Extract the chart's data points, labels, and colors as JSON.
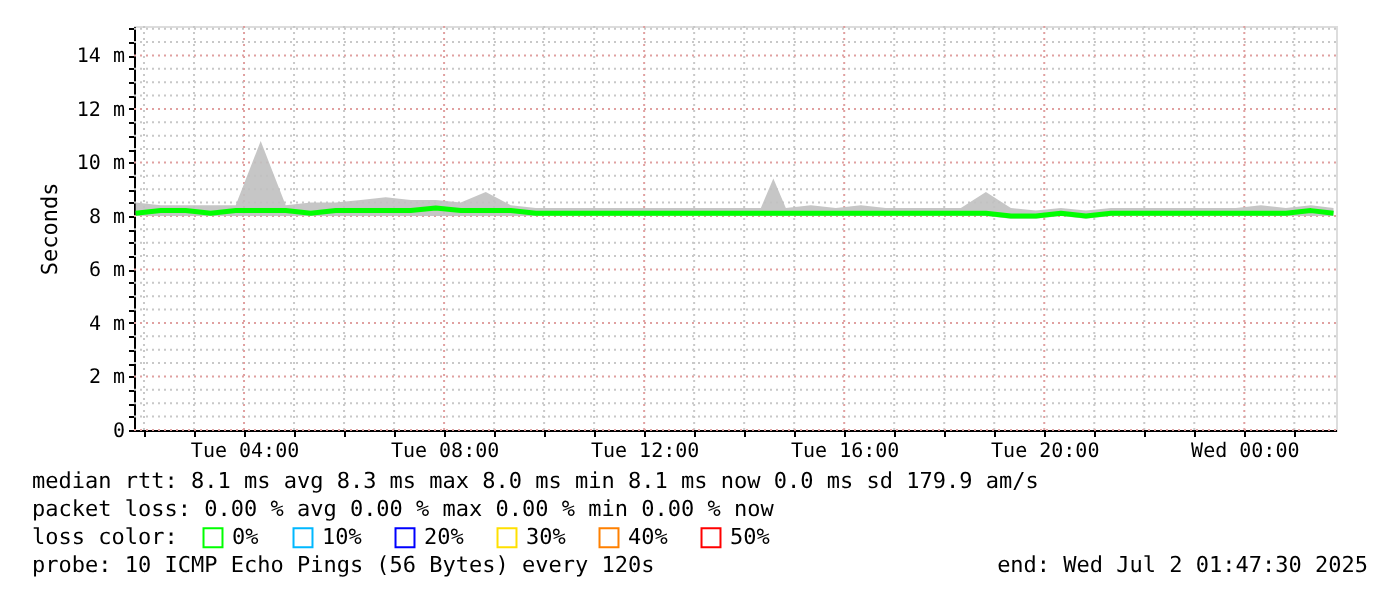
{
  "chart_data": {
    "type": "line",
    "ylabel": "Seconds",
    "x": [
      "2025-07-01T01:50",
      "2025-07-01T02:20",
      "2025-07-01T02:50",
      "2025-07-01T03:20",
      "2025-07-01T03:50",
      "2025-07-01T04:20",
      "2025-07-01T04:50",
      "2025-07-01T05:20",
      "2025-07-01T05:50",
      "2025-07-01T06:20",
      "2025-07-01T06:50",
      "2025-07-01T07:20",
      "2025-07-01T07:50",
      "2025-07-01T08:20",
      "2025-07-01T08:50",
      "2025-07-01T09:20",
      "2025-07-01T09:50",
      "2025-07-01T10:20",
      "2025-07-01T10:50",
      "2025-07-01T11:20",
      "2025-07-01T11:50",
      "2025-07-01T12:20",
      "2025-07-01T12:50",
      "2025-07-01T13:20",
      "2025-07-01T13:50",
      "2025-07-01T14:20",
      "2025-07-01T14:35",
      "2025-07-01T14:50",
      "2025-07-01T15:20",
      "2025-07-01T15:50",
      "2025-07-01T16:20",
      "2025-07-01T16:50",
      "2025-07-01T17:20",
      "2025-07-01T17:50",
      "2025-07-01T18:20",
      "2025-07-01T18:50",
      "2025-07-01T19:20",
      "2025-07-01T19:50",
      "2025-07-01T20:20",
      "2025-07-01T20:50",
      "2025-07-01T21:20",
      "2025-07-01T21:50",
      "2025-07-01T22:20",
      "2025-07-01T22:50",
      "2025-07-01T23:20",
      "2025-07-01T23:50",
      "2025-07-02T00:20",
      "2025-07-02T00:50",
      "2025-07-02T01:20",
      "2025-07-02T01:47"
    ],
    "series": [
      {
        "name": "0%",
        "color": "#00ff00",
        "values": [
          8.1,
          8.2,
          8.2,
          8.1,
          8.2,
          8.2,
          8.2,
          8.1,
          8.2,
          8.2,
          8.2,
          8.2,
          8.3,
          8.2,
          8.2,
          8.2,
          8.1,
          8.1,
          8.1,
          8.1,
          8.1,
          8.1,
          8.1,
          8.1,
          8.1,
          8.1,
          8.1,
          8.1,
          8.1,
          8.1,
          8.1,
          8.1,
          8.1,
          8.1,
          8.1,
          8.1,
          8.0,
          8.0,
          8.1,
          8.0,
          8.1,
          8.1,
          8.1,
          8.1,
          8.1,
          8.1,
          8.1,
          8.1,
          8.2,
          8.1
        ],
        "lower": [
          8.0,
          8.0,
          8.0,
          8.0,
          8.0,
          8.0,
          8.0,
          8.0,
          8.0,
          8.0,
          8.0,
          8.0,
          8.0,
          8.0,
          8.0,
          8.0,
          8.0,
          8.0,
          8.0,
          8.0,
          8.0,
          8.0,
          8.0,
          8.0,
          8.0,
          8.0,
          8.0,
          8.0,
          8.0,
          8.0,
          8.0,
          8.0,
          8.0,
          8.0,
          8.0,
          8.0,
          7.9,
          7.9,
          8.0,
          7.9,
          8.0,
          8.0,
          8.0,
          8.0,
          8.0,
          8.0,
          8.0,
          8.0,
          8.0,
          8.0
        ],
        "upper": [
          8.5,
          8.4,
          8.4,
          8.4,
          8.4,
          10.8,
          8.4,
          8.5,
          8.5,
          8.6,
          8.7,
          8.6,
          8.6,
          8.5,
          8.9,
          8.4,
          8.3,
          8.3,
          8.3,
          8.3,
          8.3,
          8.3,
          8.3,
          8.3,
          8.3,
          8.3,
          9.4,
          8.3,
          8.4,
          8.3,
          8.4,
          8.3,
          8.3,
          8.3,
          8.3,
          8.9,
          8.3,
          8.2,
          8.3,
          8.2,
          8.3,
          8.3,
          8.3,
          8.3,
          8.3,
          8.3,
          8.4,
          8.3,
          8.4,
          8.3
        ]
      },
      {
        "name": "10%",
        "color": "#00b8ff",
        "values": [
          null,
          null,
          null,
          null,
          null,
          null,
          null,
          null,
          null,
          null,
          null,
          null,
          null,
          null,
          null,
          null,
          null,
          null,
          null,
          null,
          null,
          null,
          null,
          null,
          null,
          null,
          null,
          null,
          null,
          null,
          null,
          null,
          null,
          null,
          null,
          null,
          null,
          null,
          null,
          null,
          null,
          null,
          null,
          null,
          null,
          null,
          null,
          null,
          null,
          null
        ]
      },
      {
        "name": "20%",
        "color": "#0000ff",
        "values": [
          null,
          null,
          null,
          null,
          null,
          null,
          null,
          null,
          null,
          null,
          null,
          null,
          null,
          null,
          null,
          null,
          null,
          null,
          null,
          null,
          null,
          null,
          null,
          null,
          null,
          null,
          null,
          null,
          null,
          null,
          null,
          null,
          null,
          null,
          null,
          null,
          null,
          null,
          null,
          null,
          null,
          null,
          null,
          null,
          null,
          null,
          null,
          null,
          null,
          null
        ]
      },
      {
        "name": "30%",
        "color": "#ffe000",
        "values": [
          null,
          null,
          null,
          null,
          null,
          null,
          null,
          null,
          null,
          null,
          null,
          null,
          null,
          null,
          null,
          null,
          null,
          null,
          null,
          null,
          null,
          null,
          null,
          null,
          null,
          null,
          null,
          null,
          null,
          null,
          null,
          null,
          null,
          null,
          null,
          null,
          null,
          null,
          null,
          null,
          null,
          null,
          null,
          null,
          null,
          null,
          null,
          null,
          null,
          null
        ]
      },
      {
        "name": "40%",
        "color": "#ff8000",
        "values": [
          null,
          null,
          null,
          null,
          null,
          null,
          null,
          null,
          null,
          null,
          null,
          null,
          null,
          null,
          null,
          null,
          null,
          null,
          null,
          null,
          null,
          null,
          null,
          null,
          null,
          null,
          null,
          null,
          null,
          null,
          null,
          null,
          null,
          null,
          null,
          null,
          null,
          null,
          null,
          null,
          null,
          null,
          null,
          null,
          null,
          null,
          null,
          null,
          null,
          null
        ]
      },
      {
        "name": "50%",
        "color": "#ff0000",
        "values": [
          null,
          null,
          null,
          null,
          null,
          null,
          null,
          null,
          null,
          null,
          null,
          null,
          null,
          null,
          null,
          null,
          null,
          null,
          null,
          null,
          null,
          null,
          null,
          null,
          null,
          null,
          null,
          null,
          null,
          null,
          null,
          null,
          null,
          null,
          null,
          null,
          null,
          null,
          null,
          null,
          null,
          null,
          null,
          null,
          null,
          null,
          null,
          null,
          null,
          null
        ]
      }
    ],
    "legend_title": "loss color:",
    "legend": "bottom",
    "xlim": [
      "2025-07-01T01:48",
      "2025-07-02T01:50"
    ],
    "xticks": [
      {
        "value": "2025-07-01T02:00",
        "label": null
      },
      {
        "value": "2025-07-01T03:00",
        "label": null
      },
      {
        "value": "2025-07-01T04:00",
        "label": "Tue 04:00"
      },
      {
        "value": "2025-07-01T05:00",
        "label": null
      },
      {
        "value": "2025-07-01T06:00",
        "label": null
      },
      {
        "value": "2025-07-01T07:00",
        "label": null
      },
      {
        "value": "2025-07-01T08:00",
        "label": "Tue 08:00"
      },
      {
        "value": "2025-07-01T09:00",
        "label": null
      },
      {
        "value": "2025-07-01T10:00",
        "label": null
      },
      {
        "value": "2025-07-01T11:00",
        "label": null
      },
      {
        "value": "2025-07-01T12:00",
        "label": "Tue 12:00"
      },
      {
        "value": "2025-07-01T13:00",
        "label": null
      },
      {
        "value": "2025-07-01T14:00",
        "label": null
      },
      {
        "value": "2025-07-01T15:00",
        "label": null
      },
      {
        "value": "2025-07-01T16:00",
        "label": "Tue 16:00"
      },
      {
        "value": "2025-07-01T17:00",
        "label": null
      },
      {
        "value": "2025-07-01T18:00",
        "label": null
      },
      {
        "value": "2025-07-01T19:00",
        "label": null
      },
      {
        "value": "2025-07-01T20:00",
        "label": "Tue 20:00"
      },
      {
        "value": "2025-07-01T21:00",
        "label": null
      },
      {
        "value": "2025-07-01T22:00",
        "label": null
      },
      {
        "value": "2025-07-01T23:00",
        "label": null
      },
      {
        "value": "2025-07-02T00:00",
        "label": "Wed 00:00"
      },
      {
        "value": "2025-07-02T01:00",
        "label": null
      }
    ],
    "ylim": [
      0,
      15.1
    ],
    "yticks": [
      {
        "value": 0,
        "label": "0"
      },
      {
        "value": 0.5,
        "label": null
      },
      {
        "value": 1,
        "label": null
      },
      {
        "value": 1.5,
        "label": null
      },
      {
        "value": 2,
        "label": "2 m"
      },
      {
        "value": 2.5,
        "label": null
      },
      {
        "value": 3,
        "label": null
      },
      {
        "value": 3.5,
        "label": null
      },
      {
        "value": 4,
        "label": "4 m"
      },
      {
        "value": 4.5,
        "label": null
      },
      {
        "value": 5,
        "label": null
      },
      {
        "value": 5.5,
        "label": null
      },
      {
        "value": 6,
        "label": "6 m"
      },
      {
        "value": 6.5,
        "label": null
      },
      {
        "value": 7,
        "label": null
      },
      {
        "value": 7.5,
        "label": null
      },
      {
        "value": 8,
        "label": "8 m"
      },
      {
        "value": 8.5,
        "label": null
      },
      {
        "value": 9,
        "label": null
      },
      {
        "value": 9.5,
        "label": null
      },
      {
        "value": 10,
        "label": "10 m"
      },
      {
        "value": 10.5,
        "label": null
      },
      {
        "value": 11,
        "label": null
      },
      {
        "value": 11.5,
        "label": null
      },
      {
        "value": 12,
        "label": "12 m"
      },
      {
        "value": 12.5,
        "label": null
      },
      {
        "value": 13,
        "label": null
      },
      {
        "value": 13.5,
        "label": null
      },
      {
        "value": 14,
        "label": "14 m"
      },
      {
        "value": 14.5,
        "label": null
      },
      {
        "value": 15,
        "label": null
      }
    ],
    "grid": true,
    "annotations": [
      "median rtt: 8.1 ms avg 8.3 ms max 8.0 ms min 8.1 ms now 0.0 ms sd 179.9 am/s",
      "packet loss: 0.00 % avg 0.00 % max 0.00 % min 0.00 % now",
      "probe: 10 ICMP Echo Pings (56 Bytes) every 120s",
      "end: Wed Jul 2 01:47:30 2025"
    ]
  }
}
